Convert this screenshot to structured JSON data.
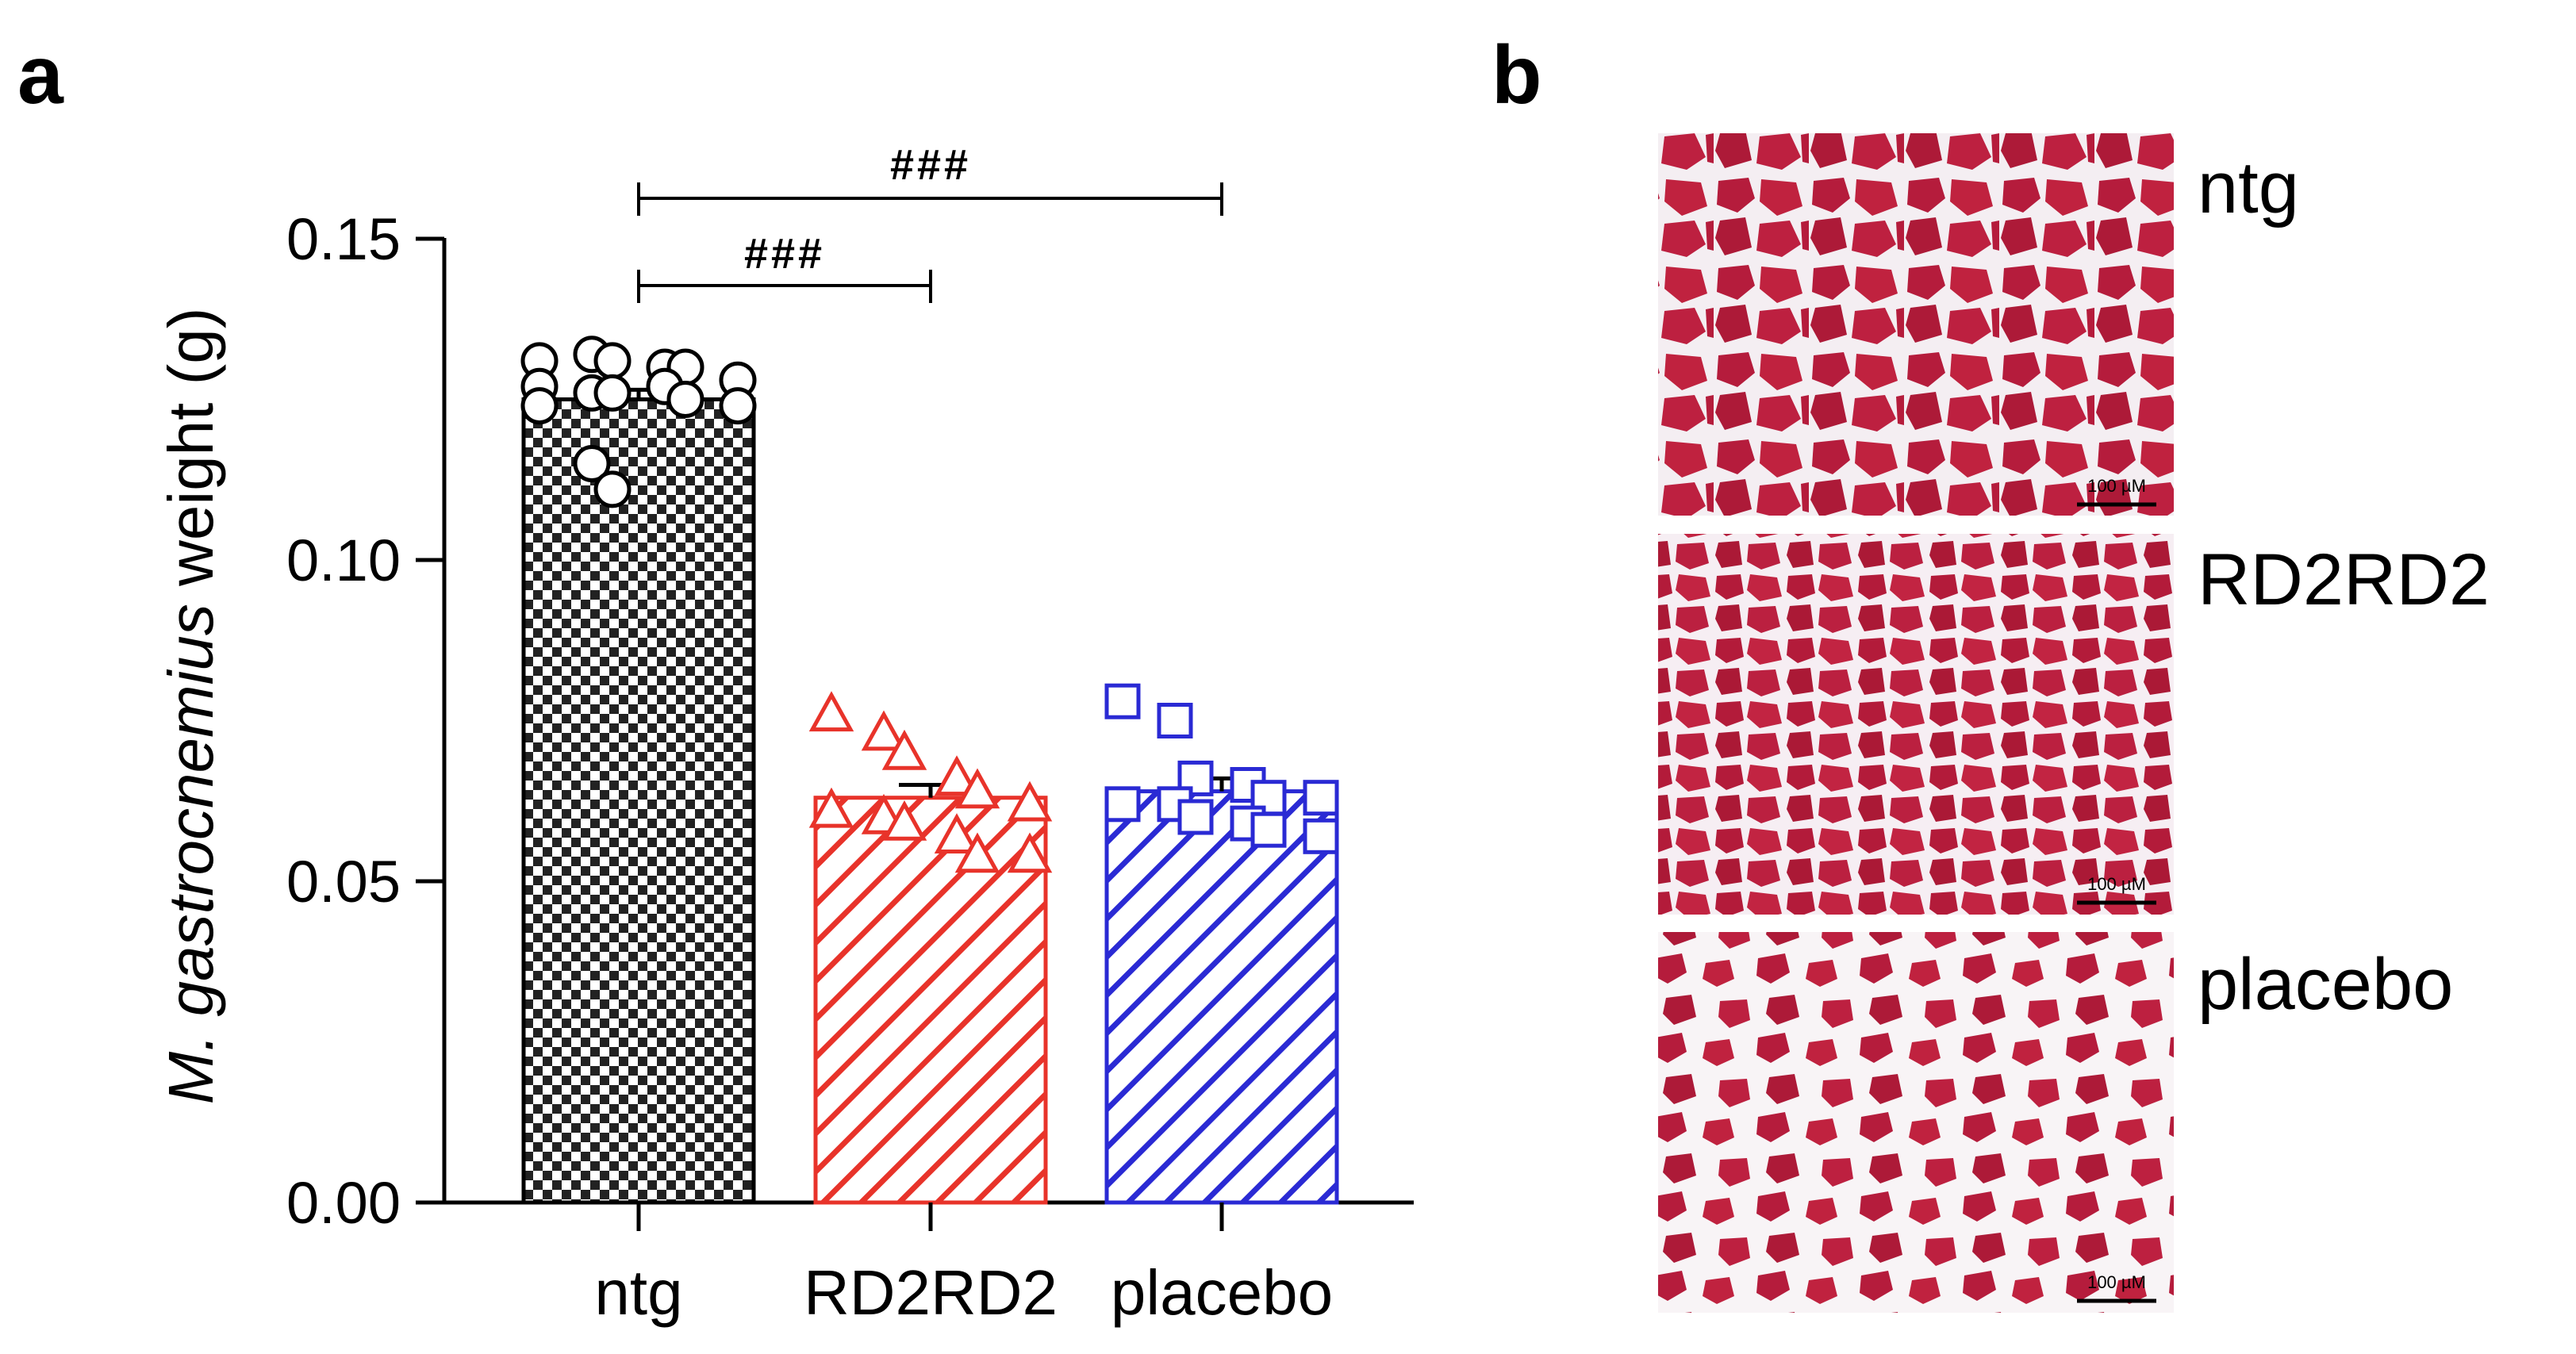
{
  "panels": {
    "a": "a",
    "b": "b"
  },
  "chart_data": {
    "type": "bar",
    "title": "",
    "ylabel_italic": "M. gastrocnemius",
    "ylabel_rest": " weight (g)",
    "xlabel": "",
    "ylim": [
      0,
      0.15
    ],
    "yticks": [
      0.0,
      0.05,
      0.1,
      0.15
    ],
    "ytick_labels": [
      "0.00",
      "0.05",
      "0.10",
      "0.15"
    ],
    "categories": [
      "ntg",
      "RD2RD2",
      "placebo"
    ],
    "series": [
      {
        "name": "ntg",
        "mean": 0.125,
        "sem": 0.0015,
        "color": "#000000",
        "pattern": "checker",
        "marker": "circle",
        "points": [
          0.131,
          0.132,
          0.131,
          0.13,
          0.13,
          0.128,
          0.127,
          0.126,
          0.126,
          0.127,
          0.125,
          0.124,
          0.124,
          0.115,
          0.111
        ]
      },
      {
        "name": "RD2RD2",
        "mean": 0.063,
        "sem": 0.002,
        "color": "#e8332a",
        "pattern": "stripes",
        "marker": "triangle",
        "points": [
          0.076,
          0.073,
          0.07,
          0.066,
          0.064,
          0.062,
          0.061,
          0.06,
          0.059,
          0.057,
          0.054,
          0.054
        ]
      },
      {
        "name": "placebo",
        "mean": 0.064,
        "sem": 0.002,
        "color": "#2a2ad4",
        "pattern": "stripes",
        "marker": "square",
        "points": [
          0.078,
          0.075,
          0.066,
          0.065,
          0.063,
          0.063,
          0.062,
          0.062,
          0.06,
          0.059,
          0.058,
          0.057
        ]
      }
    ],
    "significance": [
      {
        "from": 0,
        "to": 1,
        "y": 0.143,
        "label": "###"
      },
      {
        "from": 0,
        "to": 2,
        "y": 0.157,
        "label": "###"
      }
    ]
  },
  "histology": {
    "labels": [
      "ntg",
      "RD2RD2",
      "placebo"
    ],
    "scale_bar": "100 µM"
  }
}
